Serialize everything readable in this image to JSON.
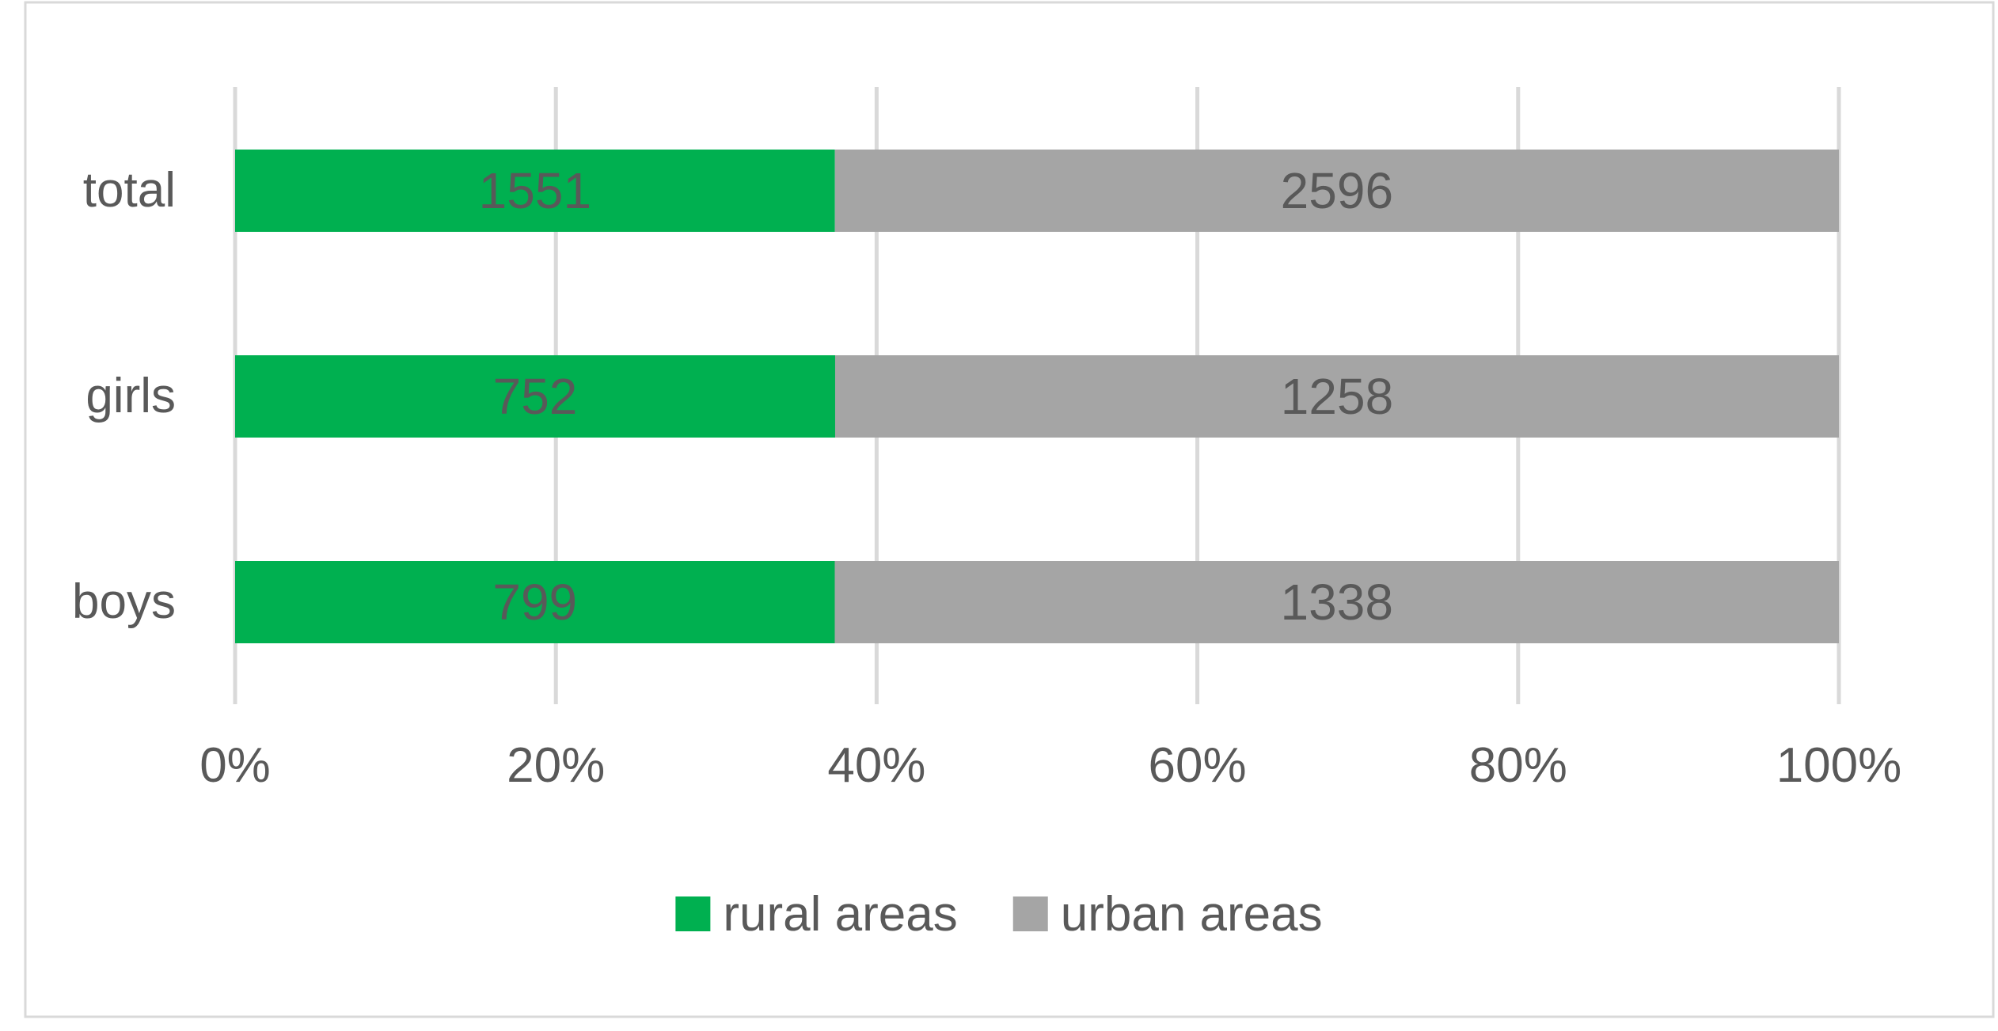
{
  "chart_data": {
    "type": "bar",
    "orientation": "horizontal",
    "stacking": "percent",
    "categories": [
      "total",
      "girls",
      "boys"
    ],
    "series": [
      {
        "name": "rural areas",
        "values": [
          1551,
          752,
          799
        ],
        "color": "#00B050"
      },
      {
        "name": "urban areas",
        "values": [
          2596,
          1258,
          1338
        ],
        "color": "#A5A5A5"
      }
    ],
    "x_ticks": [
      "0%",
      "20%",
      "40%",
      "60%",
      "80%",
      "100%"
    ],
    "xlim": [
      0,
      100
    ],
    "grid": true,
    "gridline_color": "#D9D9D9",
    "legend_position": "bottom",
    "title": "",
    "xlabel": "",
    "ylabel": ""
  }
}
